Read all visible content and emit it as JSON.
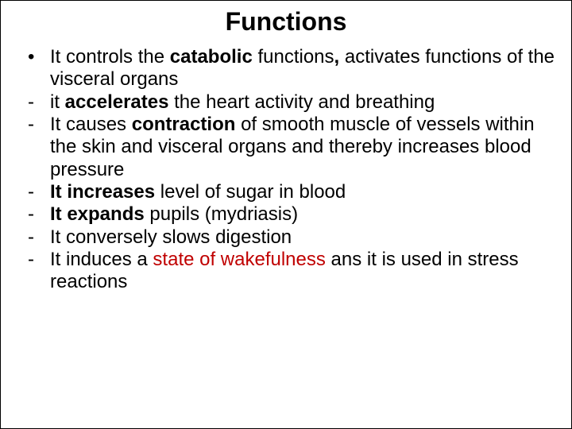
{
  "title": "Functions",
  "items": [
    {
      "marker": "bullet",
      "segments": [
        {
          "text": "It controls the "
        },
        {
          "text": "catabolic ",
          "bold": true
        },
        {
          "text": "functions"
        },
        {
          "text": ", ",
          "bold": true
        },
        {
          "text": "activates functions of the visceral organs"
        }
      ]
    },
    {
      "marker": "dash",
      "segments": [
        {
          "text": "it "
        },
        {
          "text": "accelerates",
          "bold": true
        },
        {
          "text": " the heart activity and breathing"
        }
      ]
    },
    {
      "marker": "dash",
      "segments": [
        {
          "text": "It causes "
        },
        {
          "text": "contraction",
          "bold": true
        },
        {
          "text": " of smooth muscle of vessels within the skin and visceral organs and thereby increases blood pressure"
        }
      ]
    },
    {
      "marker": "dash",
      "segments": [
        {
          "text": "It increases",
          "bold": true
        },
        {
          "text": " level of sugar in blood"
        }
      ]
    },
    {
      "marker": "dash",
      "segments": [
        {
          "text": "It expands",
          "bold": true
        },
        {
          "text": " pupils (mydriasis)"
        }
      ]
    },
    {
      "marker": "dash",
      "segments": [
        {
          "text": "It conversely slows digestion"
        }
      ]
    },
    {
      "marker": "dash",
      "segments": [
        {
          "text": "It induces a "
        },
        {
          "text": "state of wakefulness",
          "red": true
        },
        {
          "text": " ans it is used in stress reactions"
        }
      ]
    }
  ]
}
